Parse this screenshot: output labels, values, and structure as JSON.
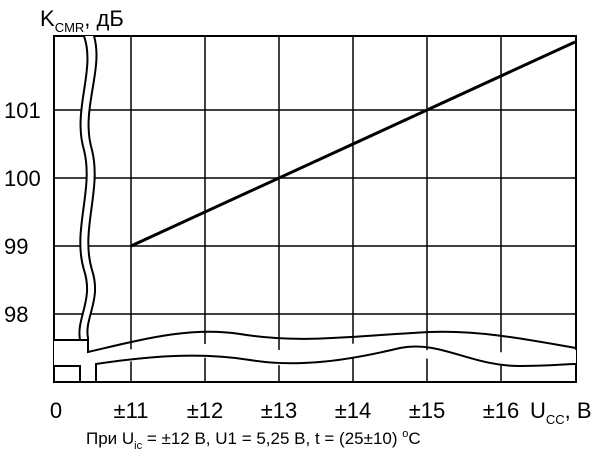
{
  "chart_data": {
    "type": "line",
    "ylabel_main": "K",
    "ylabel_sub": "CMR",
    "ylabel_unit": ", дБ",
    "xlabel_main": "U",
    "xlabel_sub": "CC",
    "xlabel_unit": ", В",
    "x_origin_label": "0",
    "y_ticks": [
      "98",
      "99",
      "100",
      "101"
    ],
    "x_ticks": [
      "±11",
      "±12",
      "±13",
      "±14",
      "±15",
      "±16"
    ],
    "xlim": [
      11,
      17
    ],
    "ylim": [
      98,
      102
    ],
    "axis_breaks": true,
    "grid": true,
    "series": [
      {
        "x": [
          11,
          17
        ],
        "y": [
          99,
          102
        ]
      }
    ]
  },
  "footnote": {
    "prefix": "При  U",
    "sub1": "ic",
    "mid": " = ±12 В, U1 = 5,25 В,  t = (25±10) ",
    "sup": "o",
    "suffix": "C"
  }
}
